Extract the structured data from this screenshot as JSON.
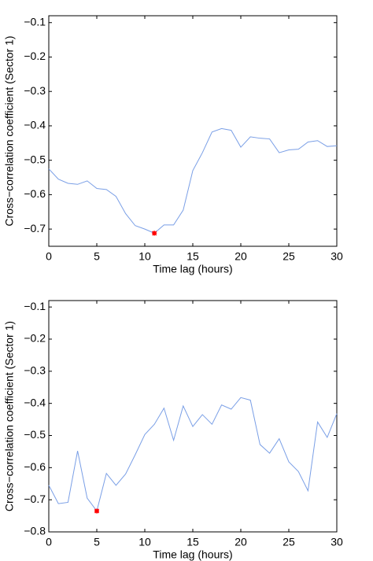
{
  "chart_data": [
    {
      "type": "line",
      "xlabel": "Time lag (hours)",
      "ylabel": "Cross−correlation coefficient (Sector 1)",
      "x": [
        0,
        1,
        2,
        3,
        4,
        5,
        6,
        7,
        8,
        9,
        10,
        11,
        12,
        13,
        14,
        15,
        16,
        17,
        18,
        19,
        20,
        21,
        22,
        23,
        24,
        25,
        26,
        27,
        28,
        29,
        30
      ],
      "values": [
        -0.525,
        -0.555,
        -0.567,
        -0.57,
        -0.56,
        -0.582,
        -0.585,
        -0.605,
        -0.655,
        -0.69,
        -0.7,
        -0.712,
        -0.688,
        -0.688,
        -0.645,
        -0.53,
        -0.478,
        -0.418,
        -0.408,
        -0.413,
        -0.462,
        -0.432,
        -0.436,
        -0.438,
        -0.478,
        -0.47,
        -0.468,
        -0.447,
        -0.443,
        -0.46,
        -0.458
      ],
      "color": "#7a9fe6",
      "highlight": {
        "x": 11,
        "y": -0.712,
        "color": "#ff0000"
      },
      "xlim": [
        0,
        30
      ],
      "xticks": [
        0,
        5,
        10,
        15,
        20,
        25,
        30
      ],
      "ylim": [
        -0.75,
        -0.08
      ],
      "yticks": [
        {
          "value": -0.7,
          "label": "−0.7"
        },
        {
          "value": -0.6,
          "label": "−0.6"
        },
        {
          "value": -0.5,
          "label": "−0.5"
        },
        {
          "value": -0.4,
          "label": "−0.4"
        },
        {
          "value": -0.3,
          "label": "−0.3"
        },
        {
          "value": -0.2,
          "label": "−0.2"
        },
        {
          "value": -0.1,
          "label": "−0.1"
        }
      ]
    },
    {
      "type": "line",
      "xlabel": "Time lag (hours)",
      "ylabel": "Cross−correlation coefficient (Sector 1)",
      "x": [
        0,
        1,
        2,
        3,
        4,
        5,
        6,
        7,
        8,
        9,
        10,
        11,
        12,
        13,
        14,
        15,
        16,
        17,
        18,
        19,
        20,
        21,
        22,
        23,
        24,
        25,
        26,
        27,
        28,
        29,
        30
      ],
      "values": [
        -0.655,
        -0.712,
        -0.708,
        -0.548,
        -0.695,
        -0.735,
        -0.618,
        -0.655,
        -0.62,
        -0.56,
        -0.497,
        -0.465,
        -0.415,
        -0.515,
        -0.408,
        -0.472,
        -0.435,
        -0.465,
        -0.405,
        -0.418,
        -0.382,
        -0.39,
        -0.528,
        -0.555,
        -0.51,
        -0.582,
        -0.612,
        -0.672,
        -0.458,
        -0.506,
        -0.432
      ],
      "color": "#7a9fe6",
      "highlight": {
        "x": 5,
        "y": -0.735,
        "color": "#ff0000"
      },
      "xlim": [
        0,
        30
      ],
      "xticks": [
        0,
        5,
        10,
        15,
        20,
        25,
        30
      ],
      "ylim": [
        -0.8,
        -0.08
      ],
      "yticks": [
        {
          "value": -0.8,
          "label": "−0.8"
        },
        {
          "value": -0.7,
          "label": "−0.7"
        },
        {
          "value": -0.6,
          "label": "−0.6"
        },
        {
          "value": -0.5,
          "label": "−0.5"
        },
        {
          "value": -0.4,
          "label": "−0.4"
        },
        {
          "value": -0.3,
          "label": "−0.3"
        },
        {
          "value": -0.2,
          "label": "−0.2"
        },
        {
          "value": -0.1,
          "label": "−0.1"
        }
      ]
    }
  ]
}
